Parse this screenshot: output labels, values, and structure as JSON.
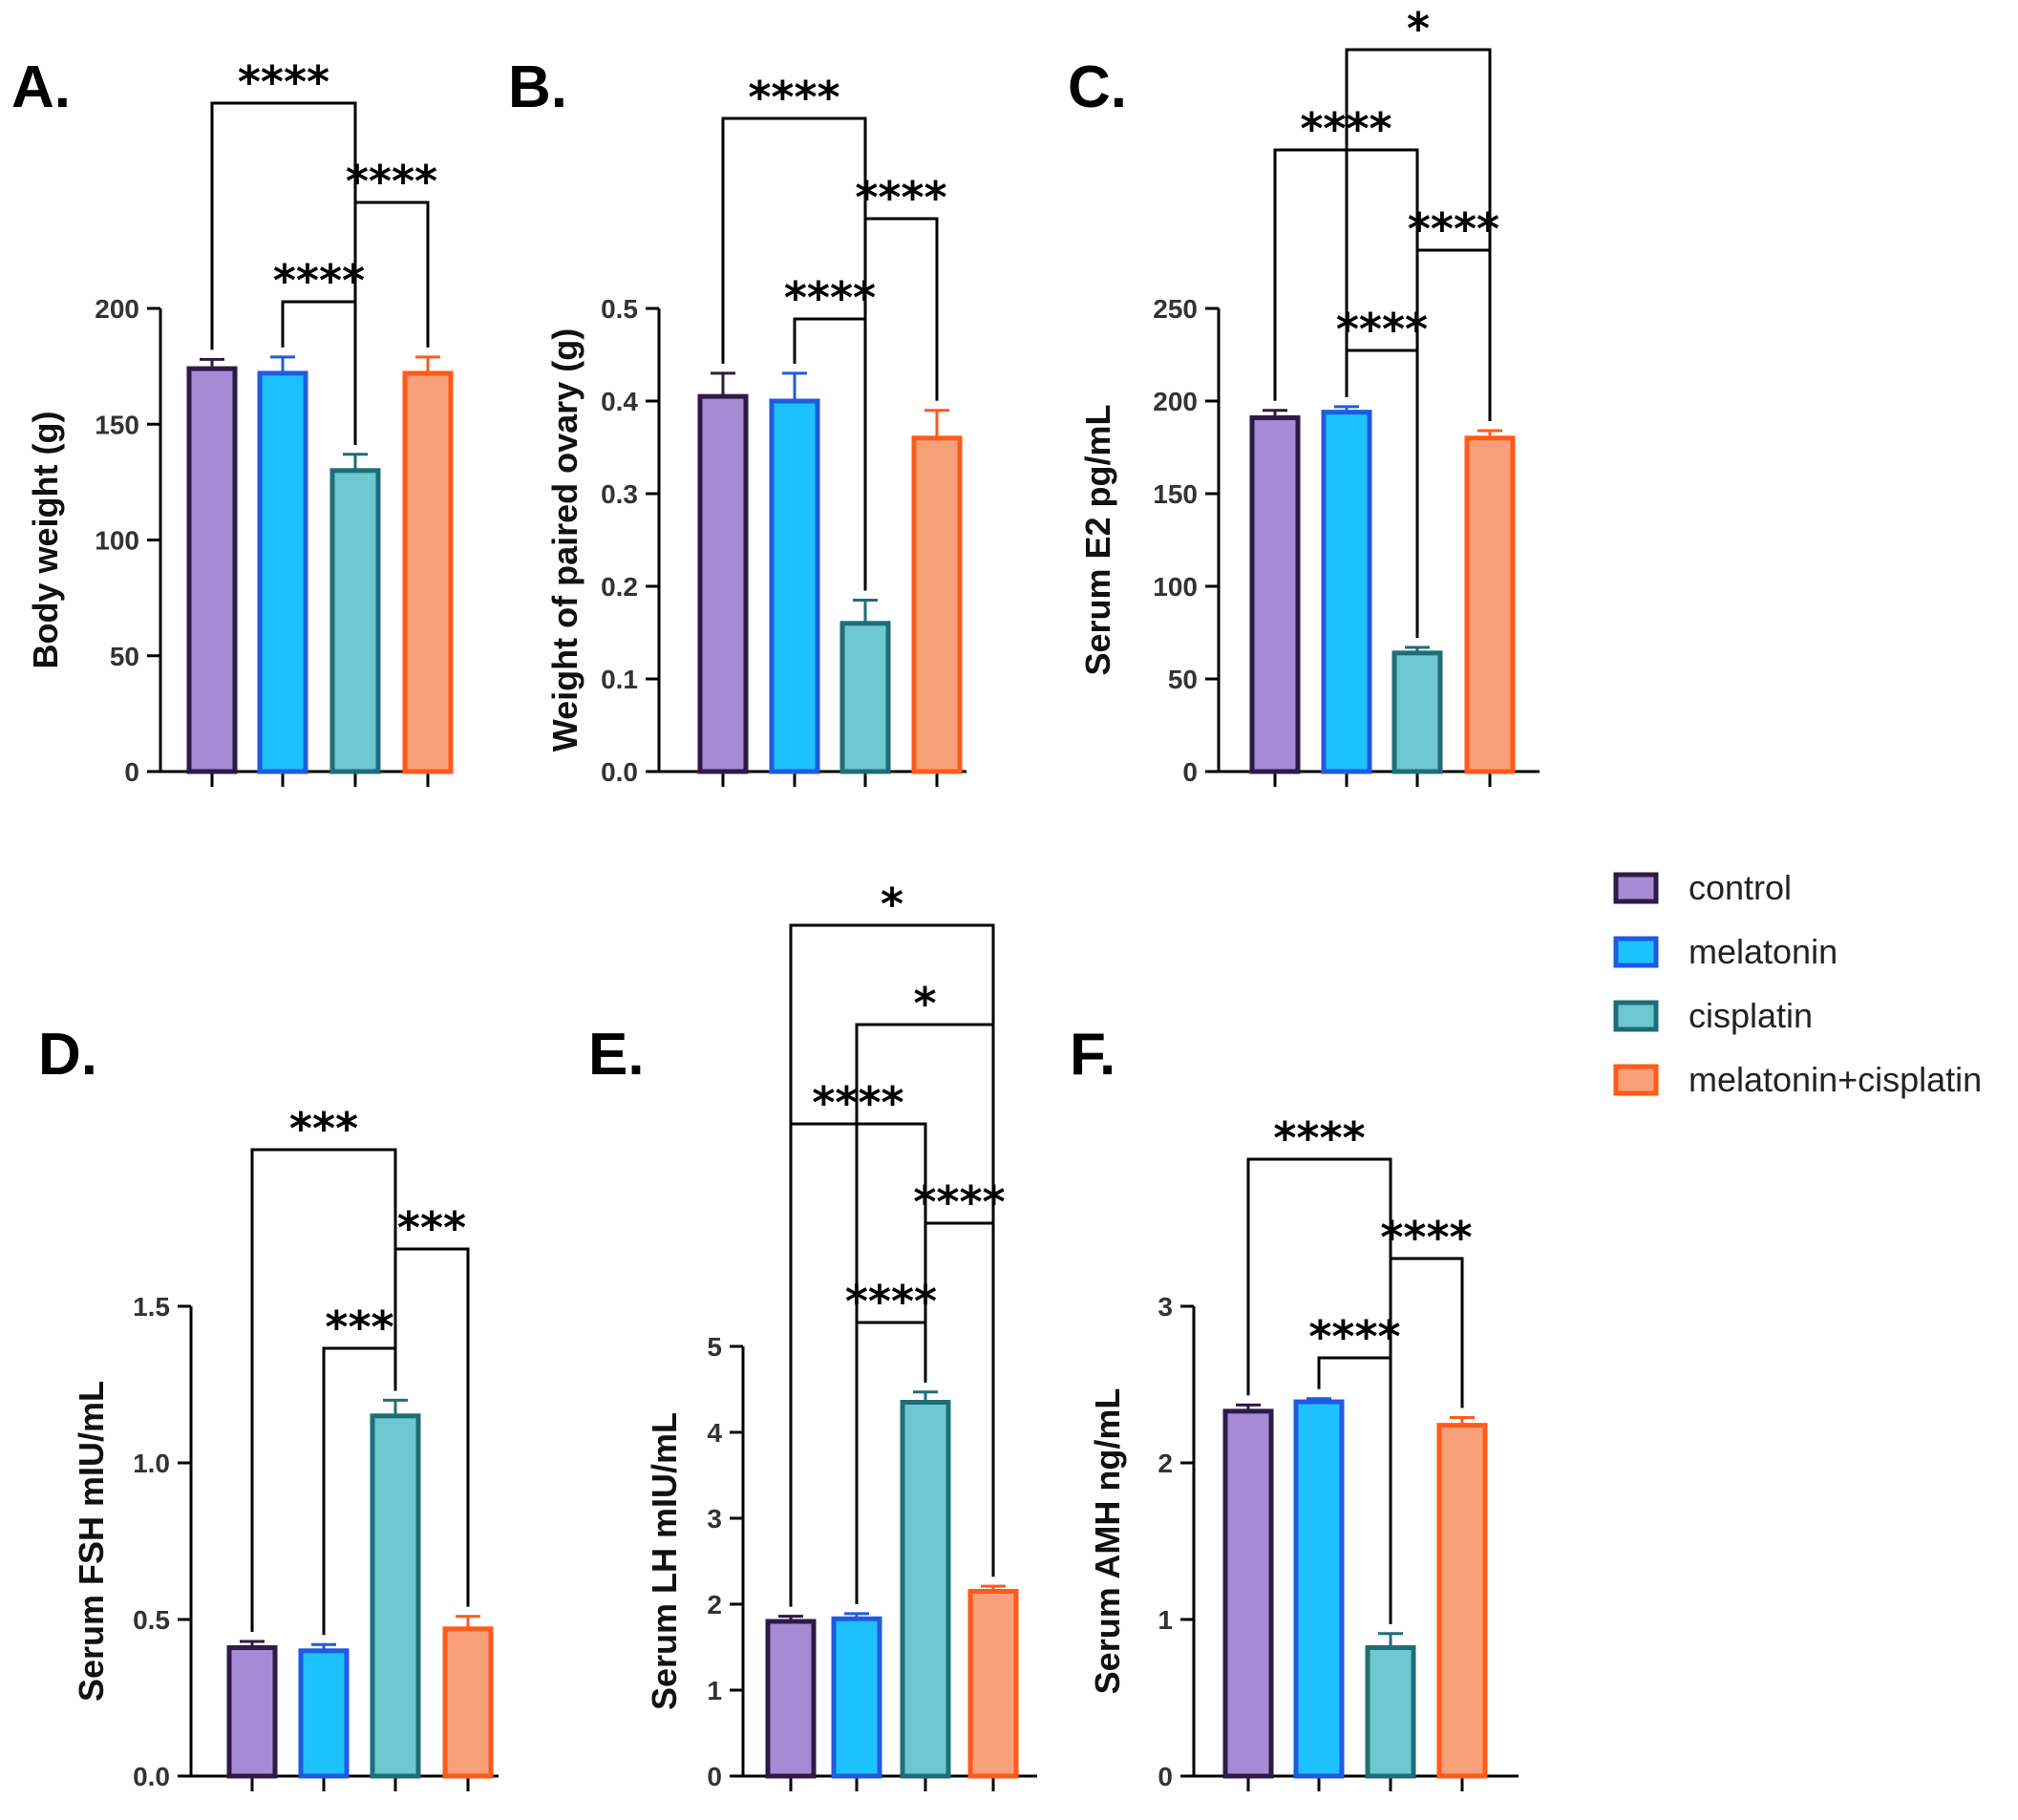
{
  "figure": {
    "colors": {
      "control": {
        "fill": "#A58BD4",
        "stroke": "#2E1A47"
      },
      "melatonin": {
        "fill": "#1EC1FF",
        "stroke": "#1F5BE0"
      },
      "cisplatin": {
        "fill": "#6EC8CF",
        "stroke": "#1E6E78"
      },
      "melatonin+cisplatin": {
        "fill": "#F8A07A",
        "stroke": "#FF5A1A"
      }
    }
  },
  "legend": {
    "items": [
      {
        "key": "control",
        "label": "control"
      },
      {
        "key": "melatonin",
        "label": "melatonin"
      },
      {
        "key": "cisplatin",
        "label": "cisplatin"
      },
      {
        "key": "melatonin+cisplatin",
        "label": "melatonin+cisplatin"
      }
    ]
  },
  "chart_data": [
    {
      "panel": "A.",
      "type": "bar",
      "ylabel": "Body weight (g)",
      "categories": [
        "control",
        "melatonin",
        "cisplatin",
        "melatonin+cisplatin"
      ],
      "values": [
        174,
        172,
        130,
        172
      ],
      "errors": [
        4,
        7,
        7,
        7
      ],
      "ylim": [
        0,
        200
      ],
      "yticks": [
        0,
        50,
        100,
        150,
        200
      ],
      "ytick_labels": [
        "0",
        "50",
        "100",
        "150",
        "200"
      ],
      "significance": [
        {
          "from": 0,
          "to": 2,
          "label": "****",
          "level": 3
        },
        {
          "from": 3,
          "to": 2,
          "label": "****",
          "level": 2
        },
        {
          "from": 1,
          "to": 2,
          "label": "****",
          "level": 1
        }
      ]
    },
    {
      "panel": "B.",
      "type": "bar",
      "ylabel": "Weight of paired ovary (g)",
      "categories": [
        "control",
        "melatonin",
        "cisplatin",
        "melatonin+cisplatin"
      ],
      "values": [
        0.405,
        0.4,
        0.16,
        0.36
      ],
      "errors": [
        0.025,
        0.03,
        0.025,
        0.03
      ],
      "ylim": [
        0,
        0.5
      ],
      "yticks": [
        0,
        0.1,
        0.2,
        0.3,
        0.4,
        0.5
      ],
      "ytick_labels": [
        "0.0",
        "0.1",
        "0.2",
        "0.3",
        "0.4",
        "0.5"
      ],
      "significance": [
        {
          "from": 0,
          "to": 2,
          "label": "****",
          "level": 3
        },
        {
          "from": 3,
          "to": 2,
          "label": "****",
          "level": 2
        },
        {
          "from": 1,
          "to": 2,
          "label": "****",
          "level": 1
        }
      ]
    },
    {
      "panel": "C.",
      "type": "bar",
      "ylabel": "Serum E2 pg/mL",
      "categories": [
        "control",
        "melatonin",
        "cisplatin",
        "melatonin+cisplatin"
      ],
      "values": [
        191,
        194,
        64,
        180
      ],
      "errors": [
        4,
        3,
        3,
        4
      ],
      "ylim": [
        0,
        250
      ],
      "yticks": [
        0,
        50,
        100,
        150,
        200,
        250
      ],
      "ytick_labels": [
        "0",
        "50",
        "100",
        "150",
        "200",
        "250"
      ],
      "significance": [
        {
          "from": 1,
          "to": 3,
          "label": "*",
          "level": 4
        },
        {
          "from": 0,
          "to": 2,
          "label": "****",
          "level": 3
        },
        {
          "from": 3,
          "to": 2,
          "label": "****",
          "level": 2
        },
        {
          "from": 1,
          "to": 2,
          "label": "****",
          "level": 1
        }
      ]
    },
    {
      "panel": "D.",
      "type": "bar",
      "ylabel": "Serum FSH mIU/mL",
      "categories": [
        "control",
        "melatonin",
        "cisplatin",
        "melatonin+cisplatin"
      ],
      "values": [
        0.41,
        0.4,
        1.15,
        0.47
      ],
      "errors": [
        0.02,
        0.02,
        0.05,
        0.04
      ],
      "ylim": [
        0,
        1.5
      ],
      "yticks": [
        0,
        0.5,
        1.0,
        1.5
      ],
      "ytick_labels": [
        "0.0",
        "0.5",
        "1.0",
        "1.5"
      ],
      "significance": [
        {
          "from": 0,
          "to": 2,
          "label": "***",
          "level": 3
        },
        {
          "from": 3,
          "to": 2,
          "label": "***",
          "level": 2
        },
        {
          "from": 1,
          "to": 2,
          "label": "***",
          "level": 1
        }
      ]
    },
    {
      "panel": "E.",
      "type": "bar",
      "ylabel": "Serum LH mIU/mL",
      "categories": [
        "control",
        "melatonin",
        "cisplatin",
        "melatonin+cisplatin"
      ],
      "values": [
        1.8,
        1.83,
        4.35,
        2.15
      ],
      "errors": [
        0.06,
        0.06,
        0.12,
        0.06
      ],
      "ylim": [
        0,
        5
      ],
      "yticks": [
        0,
        1,
        2,
        3,
        4,
        5
      ],
      "ytick_labels": [
        "0",
        "1",
        "2",
        "3",
        "4",
        "5"
      ],
      "significance": [
        {
          "from": 0,
          "to": 3,
          "label": "*",
          "level": 5
        },
        {
          "from": 1,
          "to": 3,
          "label": "*",
          "level": 4
        },
        {
          "from": 0,
          "to": 2,
          "label": "****",
          "level": 3
        },
        {
          "from": 3,
          "to": 2,
          "label": "****",
          "level": 2
        },
        {
          "from": 1,
          "to": 2,
          "label": "****",
          "level": 1
        }
      ]
    },
    {
      "panel": "F.",
      "type": "bar",
      "ylabel": "Serum AMH ng/mL",
      "categories": [
        "control",
        "melatonin",
        "cisplatin",
        "melatonin+cisplatin"
      ],
      "values": [
        2.33,
        2.39,
        0.82,
        2.24
      ],
      "errors": [
        0.04,
        0.02,
        0.09,
        0.05
      ],
      "ylim": [
        0,
        3
      ],
      "yticks": [
        0,
        1,
        2,
        3
      ],
      "ytick_labels": [
        "0",
        "1",
        "2",
        "3"
      ],
      "significance": [
        {
          "from": 0,
          "to": 2,
          "label": "****",
          "level": 3
        },
        {
          "from": 3,
          "to": 2,
          "label": "****",
          "level": 2
        },
        {
          "from": 1,
          "to": 2,
          "label": "****",
          "level": 1
        }
      ]
    }
  ]
}
